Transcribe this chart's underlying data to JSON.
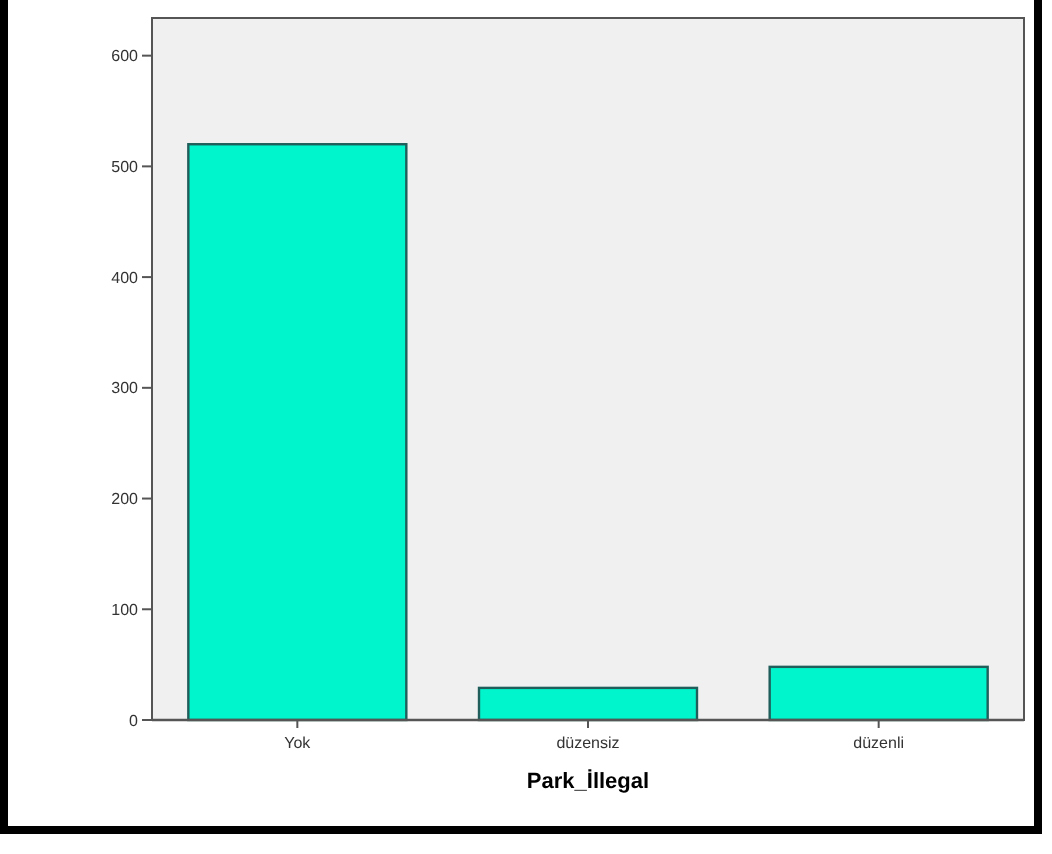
{
  "chart_data": {
    "type": "bar",
    "xlabel": "Park_İllegal",
    "categories": [
      "Yok",
      "düzensiz",
      "düzenli"
    ],
    "values": [
      520,
      29,
      48
    ],
    "color": "#00f5cc",
    "ylim": [
      0,
      634
    ],
    "yticks": [
      0,
      100,
      200,
      300,
      400,
      500,
      600
    ],
    "grid": false
  }
}
